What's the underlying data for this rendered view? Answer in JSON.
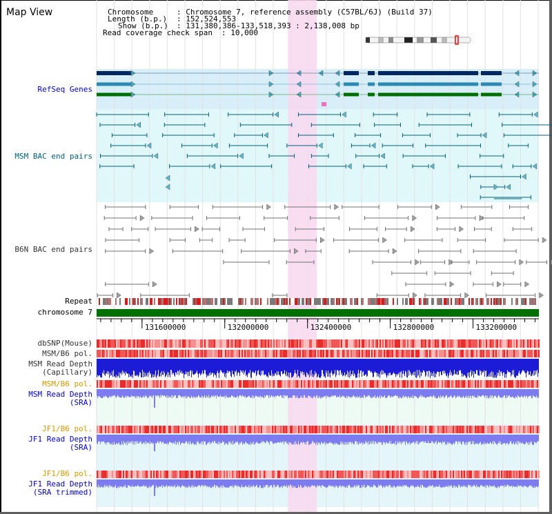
{
  "view_title": "Map View",
  "info": {
    "chromosome_key": "Chromosome",
    "chromosome_value": ": Chromosome 7, reference assembly (C57BL/6J) (Build 37)",
    "length_key": "Length (b.p.)",
    "length_value": ": 152,524,553",
    "show_key": "Show (b.p.)",
    "show_value": ": 131,380,386-133,518,393 : 2,138,008 bp",
    "coverage_key": "Read coverage check span",
    "coverage_value": ": 10,000"
  },
  "track_labels": {
    "refseq": "RefSeq Genes",
    "msm_bac": "MSM BAC end pairs",
    "b6n_bac": "B6N BAC end pairs",
    "repeat": "Repeat",
    "chromosome": "chromosome 7",
    "dbsnp": "dbSNP(Mouse)",
    "msm_b6_pol_1": "MSM/B6 pol.",
    "msm_depth_cap_1": "MSM Read Depth",
    "msm_depth_cap_2": "(Capillary)",
    "msm_b6_pol_2": "MSM/B6 pol.",
    "msm_depth_sra_1": "MSM Read Depth",
    "msm_depth_sra_2": "(SRA)",
    "jf1_b6_pol_1": "JF1/B6 pol.",
    "jf1_depth_sra_1": "JF1 Read Depth",
    "jf1_depth_sra_2": "(SRA)",
    "jf1_b6_pol_2": "JF1/B6 pol.",
    "jf1_depth_trim_1": "JF1 Read Depth",
    "jf1_depth_trim_2": "(SRA trimmed)"
  },
  "ruler": {
    "ticks": [
      "131600000",
      "132000000",
      "132400000",
      "132800000",
      "133200000"
    ],
    "tick_values": [
      131600000,
      132000000,
      132400000,
      132800000,
      133200000
    ],
    "start": 131380386,
    "end": 133518393
  },
  "highlight": {
    "start": 132305000,
    "end": 132445000
  },
  "colors": {
    "refseq_bg": "#d8eef8",
    "msm_bg": "#e0f8fa",
    "sra_bg": "#eefaf4",
    "highlight": "#f8d8f0",
    "chromosome_bar": "#007000",
    "gene_dark": "#002860",
    "gene_mid": "#2a8ab4",
    "gene_green": "#006e00",
    "msm_pair": "#00607a",
    "b6n_pair": "#707070",
    "depth_blue": "#1c1cd6",
    "depth_light": "#7c7cf0",
    "pol_red": "#e83030"
  }
}
